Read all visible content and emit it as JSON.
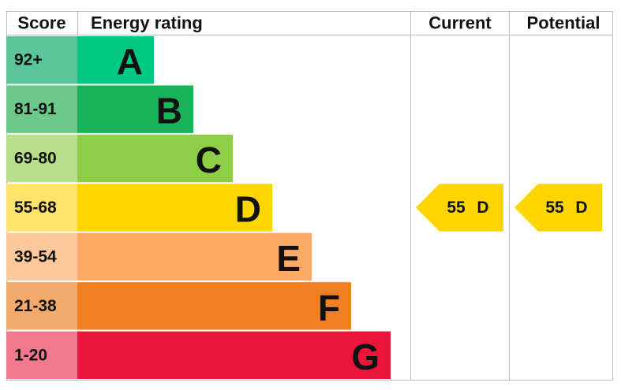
{
  "header": {
    "score": "Score",
    "rating": "Energy rating",
    "current": "Current",
    "potential": "Potential"
  },
  "bands": [
    {
      "score": "92+",
      "rating": "A",
      "color": "#00c781",
      "score_color": "#5cc49b"
    },
    {
      "score": "81-91",
      "rating": "B",
      "color": "#19b459",
      "score_color": "#6dc98b"
    },
    {
      "score": "69-80",
      "rating": "C",
      "color": "#8dce46",
      "score_color": "#b8df89"
    },
    {
      "score": "55-68",
      "rating": "D",
      "color": "#ffd500",
      "score_color": "#ffe36a"
    },
    {
      "score": "39-54",
      "rating": "E",
      "color": "#fcaa65",
      "score_color": "#fdc89b"
    },
    {
      "score": "21-38",
      "rating": "F",
      "color": "#ef8023",
      "score_color": "#f4aa6a"
    },
    {
      "score": "1-20",
      "rating": "G",
      "color": "#e9153b",
      "score_color": "#f07a8c"
    }
  ],
  "current": {
    "score": 55,
    "rating": "D",
    "color": "#ffd500"
  },
  "potential": {
    "score": 55,
    "rating": "D",
    "color": "#ffd500"
  }
}
